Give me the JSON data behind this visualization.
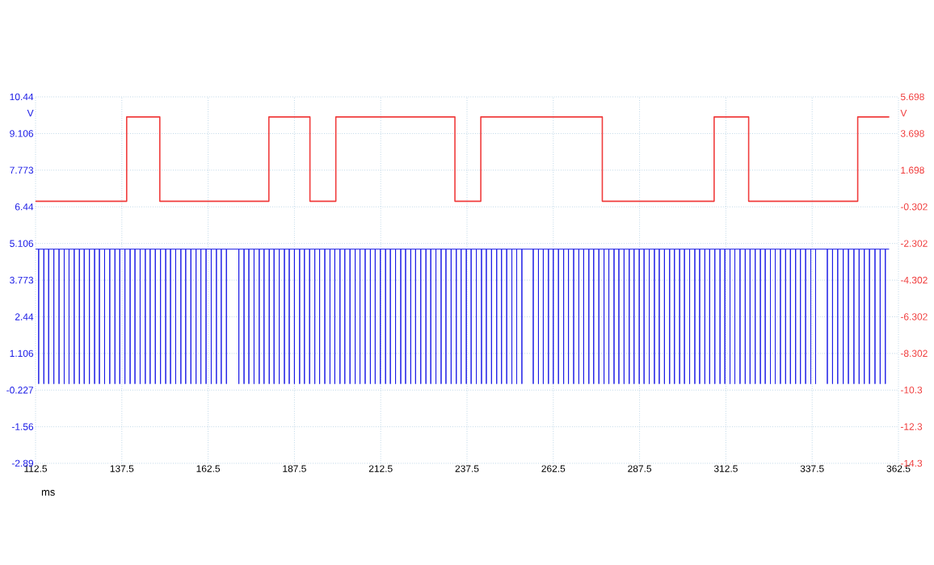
{
  "chart_data": {
    "type": "line",
    "xlabel": "ms",
    "ylabel": "V",
    "y2label": "V",
    "xlim": [
      112.5,
      362.5
    ],
    "xticks": [
      112.5,
      137.5,
      162.5,
      187.5,
      212.5,
      237.5,
      262.5,
      287.5,
      312.5,
      337.5,
      362.5
    ],
    "ylim": [
      -2.89,
      10.44
    ],
    "yticks": [
      -2.89,
      -1.56,
      -0.227,
      1.106,
      2.44,
      3.773,
      5.106,
      6.44,
      7.773,
      9.106,
      10.44
    ],
    "y2lim": [
      -14.3,
      5.698
    ],
    "y2ticks": [
      -14.3,
      -12.3,
      -10.3,
      -8.302,
      -6.302,
      -4.302,
      -2.302,
      -0.302,
      1.698,
      3.698,
      5.698
    ],
    "grid": true,
    "series": [
      {
        "axis": "y2",
        "color": "#f03c3c",
        "x": [
          112.6,
          138.9,
          138.9,
          148.5,
          148.5,
          180.1,
          180.1,
          192.0,
          192.0,
          199.5,
          199.5,
          234.0,
          234.0,
          241.5,
          241.5,
          276.7,
          276.7,
          309.1,
          309.1,
          319.1,
          319.1,
          350.7,
          350.7,
          359.7
        ],
        "values": [
          0,
          0,
          4.6,
          4.6,
          0,
          0,
          4.6,
          4.6,
          0,
          0,
          4.6,
          4.6,
          0,
          0,
          4.6,
          4.6,
          0,
          0,
          4.6,
          4.6,
          0,
          0,
          4.6,
          4.6
        ]
      },
      {
        "color": "#1a1ae6",
        "x": [
          112.6,
          113.4,
          113.4,
          113.4,
          114.9,
          114.9,
          114.9,
          116.3,
          116.3,
          116.3,
          117.8,
          117.8,
          117.8,
          119.3,
          119.3,
          119.3,
          120.8,
          120.8,
          120.8,
          122.2,
          122.2,
          122.2,
          123.7,
          123.7,
          123.7,
          125.2,
          125.2,
          125.2,
          126.6,
          126.6,
          126.6,
          128.1,
          128.1,
          128.1,
          129.6,
          129.6,
          129.6,
          131.0,
          131.0,
          131.0,
          132.5,
          132.5,
          132.5,
          134.0,
          134.0,
          134.0,
          135.5,
          135.5,
          135.5,
          136.9,
          136.9,
          136.9,
          138.4,
          138.4,
          138.4,
          139.9,
          139.9,
          139.9,
          141.3,
          141.3,
          141.3,
          142.8,
          142.8,
          142.8,
          144.3,
          144.3,
          144.3,
          145.7,
          145.7,
          145.7,
          147.2,
          147.2,
          147.2,
          148.7,
          148.7,
          148.7,
          150.2,
          150.2,
          150.2,
          151.6,
          151.6,
          151.6,
          153.1,
          153.1,
          153.1,
          154.6,
          154.6,
          154.6,
          156.0,
          156.0,
          156.0,
          157.5,
          157.5,
          157.5,
          159.0,
          159.0,
          159.0,
          160.4,
          160.4,
          160.4,
          161.9,
          161.9,
          161.9,
          163.4,
          163.4,
          163.4,
          164.9,
          164.9,
          164.9,
          166.3,
          166.3,
          166.3,
          167.8,
          167.8,
          167.8,
          171.4,
          171.4,
          171.4,
          172.9,
          172.9,
          172.9,
          174.3,
          174.3,
          174.3,
          175.8,
          175.8,
          175.8,
          177.3,
          177.3,
          177.3,
          178.7,
          178.7,
          178.7,
          180.2,
          180.2,
          180.2,
          181.6,
          181.6,
          181.6,
          183.1,
          183.1,
          183.1,
          184.6,
          184.6,
          184.6,
          186.0,
          186.0,
          186.0,
          187.5,
          187.5,
          187.5,
          189.0,
          189.0,
          189.0,
          190.4,
          190.4,
          190.4,
          191.9,
          191.9,
          191.9,
          193.4,
          193.4,
          193.4,
          194.8,
          194.8,
          194.8,
          196.3,
          196.3,
          196.3,
          197.8,
          197.8,
          197.8,
          199.2,
          199.2,
          199.2,
          200.7,
          200.7,
          200.7,
          202.1,
          202.1,
          202.1,
          203.6,
          203.6,
          203.6,
          205.1,
          205.1,
          205.1,
          206.5,
          206.5,
          206.5,
          208.0,
          208.0,
          208.0,
          209.5,
          209.5,
          209.5,
          210.9,
          210.9,
          210.9,
          212.4,
          212.4,
          212.4,
          213.9,
          213.9,
          213.9,
          215.3,
          215.3,
          215.3,
          216.8,
          216.8,
          216.8,
          218.3,
          218.3,
          218.3,
          219.7,
          219.7,
          219.7,
          221.2,
          221.2,
          221.2,
          222.6,
          222.6,
          222.6,
          224.1,
          224.1,
          224.1,
          225.6,
          225.6,
          225.6,
          227.0,
          227.0,
          227.0,
          228.5,
          228.5,
          228.5,
          230.0,
          230.0,
          230.0,
          231.4,
          231.4,
          231.4,
          232.9,
          232.9,
          232.9,
          234.4,
          234.4,
          234.4,
          235.8,
          235.8,
          235.8,
          237.3,
          237.3,
          237.3,
          238.7,
          238.7,
          238.7,
          240.2,
          240.2,
          240.2,
          241.7,
          241.7,
          241.7,
          243.1,
          243.1,
          243.1,
          244.6,
          244.6,
          244.6,
          246.1,
          246.1,
          246.1,
          247.5,
          247.5,
          247.5,
          249.0,
          249.0,
          249.0,
          250.5,
          250.5,
          250.5,
          251.9,
          251.9,
          251.9,
          253.4,
          253.4,
          253.4,
          256.7,
          256.7,
          256.7,
          258.2,
          258.2,
          258.2,
          259.6,
          259.6,
          259.6,
          261.1,
          261.1,
          261.1,
          262.5,
          262.5,
          262.5,
          264.0,
          264.0,
          264.0,
          265.5,
          265.5,
          265.5,
          266.9,
          266.9,
          266.9,
          268.4,
          268.4,
          268.4,
          269.9,
          269.9,
          269.9,
          271.3,
          271.3,
          271.3,
          272.8,
          272.8,
          272.8,
          274.2,
          274.2,
          274.2,
          275.7,
          275.7,
          275.7,
          277.2,
          277.2,
          277.2,
          278.6,
          278.6,
          278.6,
          280.1,
          280.1,
          280.1,
          281.5,
          281.5,
          281.5,
          283.0,
          283.0,
          283.0,
          284.5,
          284.5,
          284.5,
          285.9,
          285.9,
          285.9,
          287.4,
          287.4,
          287.4,
          288.8,
          288.8,
          288.8,
          290.3,
          290.3,
          290.3,
          291.8,
          291.8,
          291.8,
          293.2,
          293.2,
          293.2,
          294.7,
          294.7,
          294.7,
          296.2,
          296.2,
          296.2,
          297.6,
          297.6,
          297.6,
          299.1,
          299.1,
          299.1,
          300.5,
          300.5,
          300.5,
          302.0,
          302.0,
          302.0,
          303.5,
          303.5,
          303.5,
          304.9,
          304.9,
          304.9,
          306.4,
          306.4,
          306.4,
          307.8,
          307.8,
          307.8,
          309.3,
          309.3,
          309.3,
          310.8,
          310.8,
          310.8,
          312.2,
          312.2,
          312.2,
          313.7,
          313.7,
          313.7,
          315.1,
          315.1,
          315.1,
          316.6,
          316.6,
          316.6,
          318.1,
          318.1,
          318.1,
          319.5,
          319.5,
          319.5,
          321.0,
          321.0,
          321.0,
          322.5,
          322.5,
          322.5,
          323.9,
          323.9,
          323.9,
          325.4,
          325.4,
          325.4,
          326.8,
          326.8,
          326.8,
          328.3,
          328.3,
          328.3,
          329.8,
          329.8,
          329.8,
          331.2,
          331.2,
          331.2,
          332.7,
          332.7,
          332.7,
          334.1,
          334.1,
          334.1,
          335.6,
          335.6,
          335.6,
          337.1,
          337.1,
          337.1,
          338.5,
          338.5,
          338.5,
          341.9,
          341.9,
          341.9,
          343.4,
          343.4,
          343.4,
          344.9,
          344.9,
          344.9,
          346.5,
          346.5,
          346.5,
          348.0,
          348.0,
          348.0,
          349.6,
          349.6,
          349.6,
          351.1,
          351.1,
          351.1,
          352.6,
          352.6,
          352.6,
          354.1,
          354.1,
          354.1,
          355.7,
          355.7,
          355.7,
          357.2,
          357.2,
          357.2,
          358.7,
          358.7,
          358.7,
          359.7
        ],
        "values": [
          4.9,
          4.9,
          0,
          4.9,
          4.9,
          0,
          4.9,
          4.9,
          0,
          4.9,
          4.9,
          0,
          4.9,
          4.9,
          0,
          4.9,
          4.9,
          0,
          4.9,
          4.9,
          0,
          4.9,
          4.9,
          0,
          4.9,
          4.9,
          0,
          4.9,
          4.9,
          0,
          4.9,
          4.9,
          0,
          4.9,
          4.9,
          0,
          4.9,
          4.9,
          0,
          4.9,
          4.9,
          0,
          4.9,
          4.9,
          0,
          4.9,
          4.9,
          0,
          4.9,
          4.9,
          0,
          4.9,
          4.9,
          0,
          4.9,
          4.9,
          0,
          4.9,
          4.9,
          0,
          4.9,
          4.9,
          0,
          4.9,
          4.9,
          0,
          4.9,
          4.9,
          0,
          4.9,
          4.9,
          0,
          4.9,
          4.9,
          0,
          4.9,
          4.9,
          0,
          4.9,
          4.9,
          0,
          4.9,
          4.9,
          0,
          4.9,
          4.9,
          0,
          4.9,
          4.9,
          0,
          4.9,
          4.9,
          0,
          4.9,
          4.9,
          0,
          4.9,
          4.9,
          0,
          4.9,
          4.9,
          0,
          4.9,
          4.9,
          0,
          4.9,
          4.9,
          0,
          4.9,
          4.9,
          0,
          4.9,
          4.9,
          0,
          4.9,
          4.9,
          0,
          4.9,
          4.9,
          0,
          4.9,
          4.9,
          0,
          4.9,
          4.9,
          0,
          4.9,
          4.9,
          0,
          4.9,
          4.9,
          0,
          4.9,
          4.9,
          0,
          4.9,
          4.9,
          0,
          4.9,
          4.9,
          0,
          4.9,
          4.9,
          0,
          4.9,
          4.9,
          0,
          4.9,
          4.9,
          0,
          4.9,
          4.9,
          0,
          4.9,
          4.9,
          0,
          4.9,
          4.9,
          0,
          4.9,
          4.9,
          0,
          4.9,
          4.9,
          0,
          4.9,
          4.9,
          0,
          4.9,
          4.9,
          0,
          4.9,
          4.9,
          0,
          4.9,
          4.9,
          0,
          4.9,
          4.9,
          0,
          4.9,
          4.9,
          0,
          4.9,
          4.9,
          0,
          4.9,
          4.9,
          0,
          4.9,
          4.9,
          0,
          4.9,
          4.9,
          0,
          4.9,
          4.9,
          0,
          4.9,
          4.9,
          0,
          4.9,
          4.9,
          0,
          4.9,
          4.9,
          0,
          4.9,
          4.9,
          0,
          4.9,
          4.9,
          0,
          4.9,
          4.9,
          0,
          4.9,
          4.9,
          0,
          4.9,
          4.9,
          0,
          4.9,
          4.9,
          0,
          4.9,
          4.9,
          0,
          4.9,
          4.9,
          0,
          4.9,
          4.9,
          0,
          4.9,
          4.9,
          0,
          4.9,
          4.9,
          0,
          4.9,
          4.9,
          0,
          4.9,
          4.9,
          0,
          4.9,
          4.9,
          0,
          4.9,
          4.9,
          0,
          4.9,
          4.9,
          0,
          4.9,
          4.9,
          0,
          4.9,
          4.9,
          0,
          4.9,
          4.9,
          0,
          4.9,
          4.9,
          0,
          4.9,
          4.9,
          0,
          4.9,
          4.9,
          0,
          4.9,
          4.9,
          0,
          4.9,
          4.9,
          0,
          4.9,
          4.9,
          0,
          4.9,
          4.9,
          0,
          4.9,
          4.9,
          0,
          4.9,
          4.9,
          0,
          4.9,
          4.9,
          0,
          4.9,
          4.9,
          0,
          4.9,
          4.9,
          0,
          4.9,
          4.9,
          0,
          4.9,
          4.9,
          0,
          4.9,
          4.9,
          0,
          4.9,
          4.9,
          0,
          4.9,
          4.9,
          0,
          4.9,
          4.9,
          0,
          4.9,
          4.9,
          0,
          4.9,
          4.9,
          0,
          4.9,
          4.9,
          0,
          4.9,
          4.9,
          0,
          4.9,
          4.9,
          0,
          4.9,
          4.9,
          0,
          4.9,
          4.9,
          0,
          4.9,
          4.9,
          0,
          4.9,
          4.9,
          0,
          4.9,
          4.9,
          0,
          4.9,
          4.9,
          0,
          4.9,
          4.9,
          0,
          4.9,
          4.9,
          0,
          4.9,
          4.9,
          0,
          4.9,
          4.9,
          0,
          4.9,
          4.9,
          0,
          4.9,
          4.9,
          0,
          4.9,
          4.9,
          0,
          4.9,
          4.9,
          0,
          4.9,
          4.9,
          0,
          4.9,
          4.9,
          0,
          4.9,
          4.9,
          0,
          4.9,
          4.9,
          0,
          4.9,
          4.9,
          0,
          4.9,
          4.9,
          0,
          4.9,
          4.9,
          0,
          4.9,
          4.9,
          0,
          4.9,
          4.9,
          0,
          4.9,
          4.9,
          0,
          4.9,
          4.9,
          0,
          4.9,
          4.9,
          0,
          4.9,
          4.9,
          0,
          4.9,
          4.9,
          0,
          4.9,
          4.9,
          0,
          4.9,
          4.9,
          0,
          4.9,
          4.9,
          0,
          4.9,
          4.9,
          0,
          4.9,
          4.9,
          0,
          4.9,
          4.9,
          0,
          4.9,
          4.9,
          0,
          4.9,
          4.9,
          0,
          4.9,
          4.9,
          0,
          4.9,
          4.9,
          0,
          4.9,
          4.9,
          0,
          4.9,
          4.9,
          0,
          4.9,
          4.9,
          0,
          4.9,
          4.9,
          0,
          4.9,
          4.9,
          0,
          4.9,
          4.9,
          0,
          4.9,
          4.9,
          0,
          4.9,
          4.9,
          0,
          4.9,
          4.9,
          0,
          4.9,
          4.9,
          0,
          4.9,
          4.9,
          0,
          4.9,
          4.9,
          0,
          4.9,
          4.9,
          0,
          4.9,
          4.9,
          0,
          4.9,
          4.9,
          0,
          4.9,
          4.9
        ]
      }
    ]
  }
}
